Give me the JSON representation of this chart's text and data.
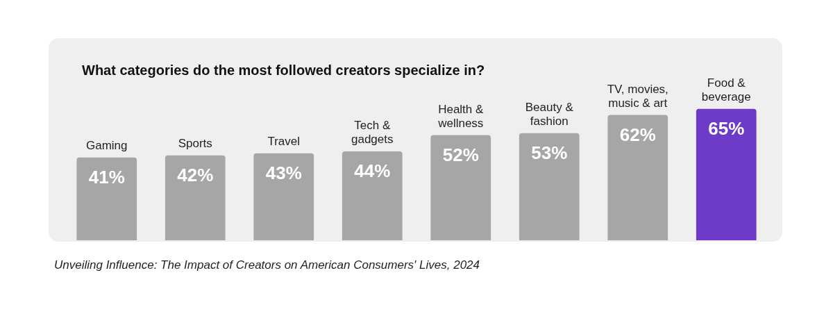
{
  "chart_data": {
    "type": "bar",
    "title": "What categories do the most followed creators specialize in?",
    "categories": [
      "Gaming",
      "Sports",
      "Travel",
      "Tech & gadgets",
      "Health & wellness",
      "Beauty & fashion",
      "TV, movies, music & art",
      "Food & beverage"
    ],
    "values": [
      41,
      42,
      43,
      44,
      52,
      53,
      62,
      65
    ],
    "colors": [
      "#a6a6a6",
      "#a6a6a6",
      "#a6a6a6",
      "#a6a6a6",
      "#a6a6a6",
      "#a6a6a6",
      "#a6a6a6",
      "#6e3ac8"
    ],
    "data_labels": true,
    "value_labels": [
      "41%",
      "42%",
      "43%",
      "44%",
      "52%",
      "53%",
      "62%",
      "65%"
    ],
    "annotations": [
      "Unveiling Influence: The Impact of Creators on American Consumers' Lives, 2024"
    ]
  }
}
